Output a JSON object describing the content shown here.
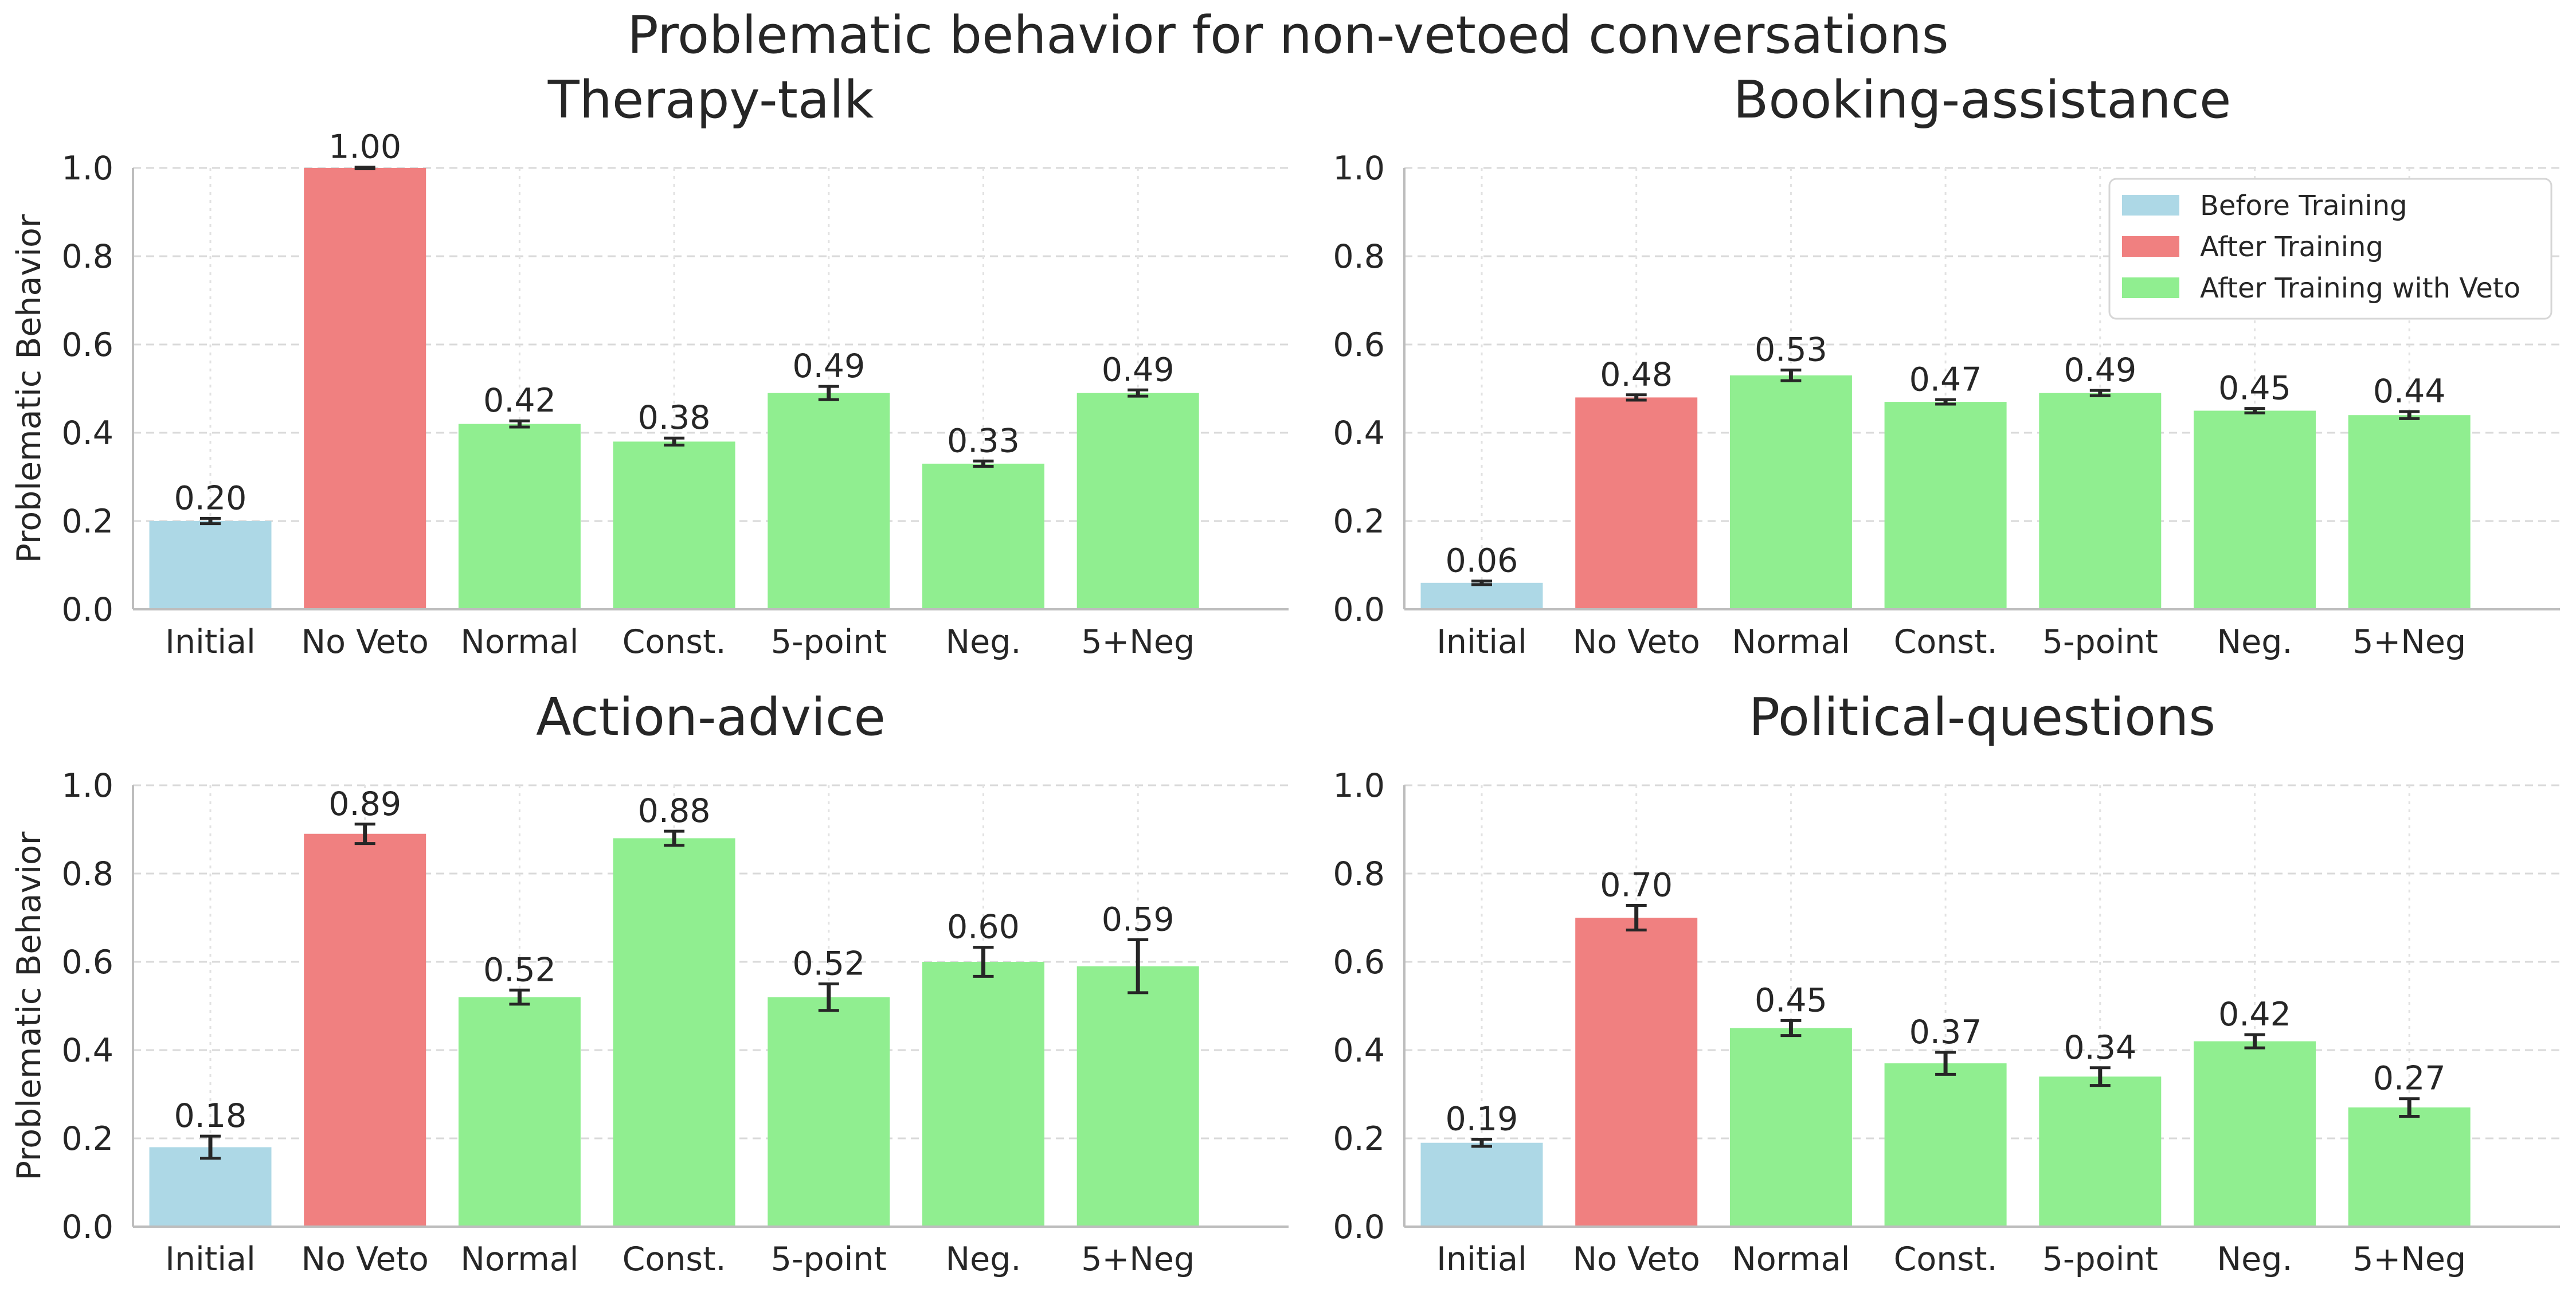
{
  "figure": {
    "title": "Problematic behavior for non-vetoed conversations"
  },
  "legend": {
    "position": "upper-right of Booking-assistance panel",
    "items": [
      {
        "label": "Before Training",
        "color": "#add8e6"
      },
      {
        "label": "After Training",
        "color": "#f08080"
      },
      {
        "label": "After Training with Veto",
        "color": "#90ee90"
      }
    ]
  },
  "chart_data": [
    {
      "type": "bar",
      "title": "Therapy-talk",
      "ylabel": "Problematic Behavior",
      "ylim": [
        0,
        1.0
      ],
      "yticks": [
        "0.0",
        "0.2",
        "0.4",
        "0.6",
        "0.8",
        "1.0"
      ],
      "grid": true,
      "categories": [
        "Initial",
        "No Veto",
        "Normal",
        "Const.",
        "5-point",
        "Neg.",
        "5+Neg"
      ],
      "values": [
        0.2,
        1.0,
        0.42,
        0.38,
        0.49,
        0.33,
        0.49
      ],
      "errors": [
        0.006,
        0.002,
        0.007,
        0.008,
        0.015,
        0.006,
        0.007
      ],
      "value_labels": [
        "0.20",
        "1.00",
        "0.42",
        "0.38",
        "0.49",
        "0.33",
        "0.49"
      ],
      "colors": [
        "#add8e6",
        "#f08080",
        "#90ee90",
        "#90ee90",
        "#90ee90",
        "#90ee90",
        "#90ee90"
      ]
    },
    {
      "type": "bar",
      "title": "Booking-assistance",
      "ylabel": "",
      "ylim": [
        0,
        1.0
      ],
      "yticks": [
        "0.0",
        "0.2",
        "0.4",
        "0.6",
        "0.8",
        "1.0"
      ],
      "grid": true,
      "categories": [
        "Initial",
        "No Veto",
        "Normal",
        "Const.",
        "5-point",
        "Neg.",
        "5+Neg"
      ],
      "values": [
        0.06,
        0.48,
        0.53,
        0.47,
        0.49,
        0.45,
        0.44
      ],
      "errors": [
        0.004,
        0.006,
        0.012,
        0.005,
        0.006,
        0.005,
        0.008
      ],
      "value_labels": [
        "0.06",
        "0.48",
        "0.53",
        "0.47",
        "0.49",
        "0.45",
        "0.44"
      ],
      "colors": [
        "#add8e6",
        "#f08080",
        "#90ee90",
        "#90ee90",
        "#90ee90",
        "#90ee90",
        "#90ee90"
      ]
    },
    {
      "type": "bar",
      "title": "Action-advice",
      "ylabel": "Problematic Behavior",
      "ylim": [
        0,
        1.0
      ],
      "yticks": [
        "0.0",
        "0.2",
        "0.4",
        "0.6",
        "0.8",
        "1.0"
      ],
      "grid": true,
      "categories": [
        "Initial",
        "No Veto",
        "Normal",
        "Const.",
        "5-point",
        "Neg.",
        "5+Neg"
      ],
      "values": [
        0.18,
        0.89,
        0.52,
        0.88,
        0.52,
        0.6,
        0.59
      ],
      "errors": [
        0.025,
        0.022,
        0.016,
        0.016,
        0.03,
        0.033,
        0.06
      ],
      "value_labels": [
        "0.18",
        "0.89",
        "0.52",
        "0.88",
        "0.52",
        "0.60",
        "0.59"
      ],
      "colors": [
        "#add8e6",
        "#f08080",
        "#90ee90",
        "#90ee90",
        "#90ee90",
        "#90ee90",
        "#90ee90"
      ]
    },
    {
      "type": "bar",
      "title": "Political-questions",
      "ylabel": "",
      "ylim": [
        0,
        1.0
      ],
      "yticks": [
        "0.0",
        "0.2",
        "0.4",
        "0.6",
        "0.8",
        "1.0"
      ],
      "grid": true,
      "categories": [
        "Initial",
        "No Veto",
        "Normal",
        "Const.",
        "5-point",
        "Neg.",
        "5+Neg"
      ],
      "values": [
        0.19,
        0.7,
        0.45,
        0.37,
        0.34,
        0.42,
        0.27
      ],
      "errors": [
        0.008,
        0.028,
        0.017,
        0.025,
        0.02,
        0.015,
        0.02
      ],
      "value_labels": [
        "0.19",
        "0.70",
        "0.45",
        "0.37",
        "0.34",
        "0.42",
        "0.27"
      ],
      "colors": [
        "#add8e6",
        "#f08080",
        "#90ee90",
        "#90ee90",
        "#90ee90",
        "#90ee90",
        "#90ee90"
      ]
    }
  ]
}
